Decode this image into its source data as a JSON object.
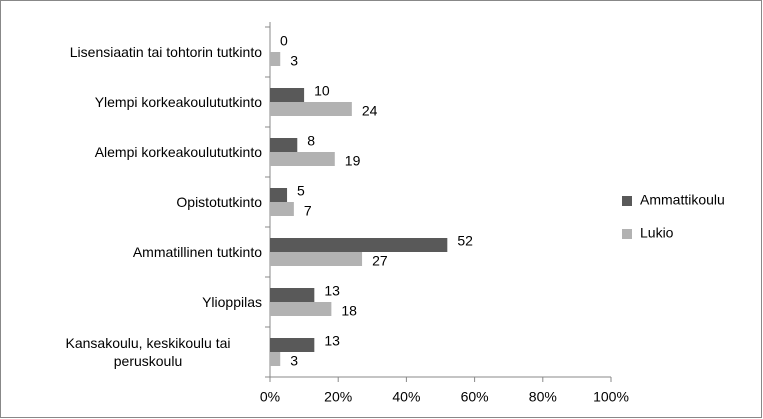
{
  "chart_data": {
    "type": "hbar",
    "categories": [
      "Lisensiaatin tai tohtorin tutkinto",
      "Ylempi korkeakoulututkinto",
      "Alempi korkeakoulututkinto",
      "Opistotutkinto",
      "Ammatillinen tutkinto",
      "Ylioppilas",
      "Kansakoulu, keskikoulu tai peruskoulu"
    ],
    "series": [
      {
        "name": "Ammattikoulu",
        "color": "#595959",
        "values": [
          0,
          10,
          8,
          5,
          52,
          13,
          13
        ]
      },
      {
        "name": "Lukio",
        "color": "#b2b2b2",
        "values": [
          3,
          24,
          19,
          7,
          27,
          18,
          3
        ]
      }
    ],
    "xlim": [
      0,
      100
    ],
    "xticks": [
      {
        "value": 0,
        "label": "0%"
      },
      {
        "value": 20,
        "label": "20%"
      },
      {
        "value": 40,
        "label": "40%"
      },
      {
        "value": 60,
        "label": "60%"
      },
      {
        "value": 80,
        "label": "80%"
      },
      {
        "value": 100,
        "label": "100%"
      }
    ],
    "legend": "right"
  }
}
